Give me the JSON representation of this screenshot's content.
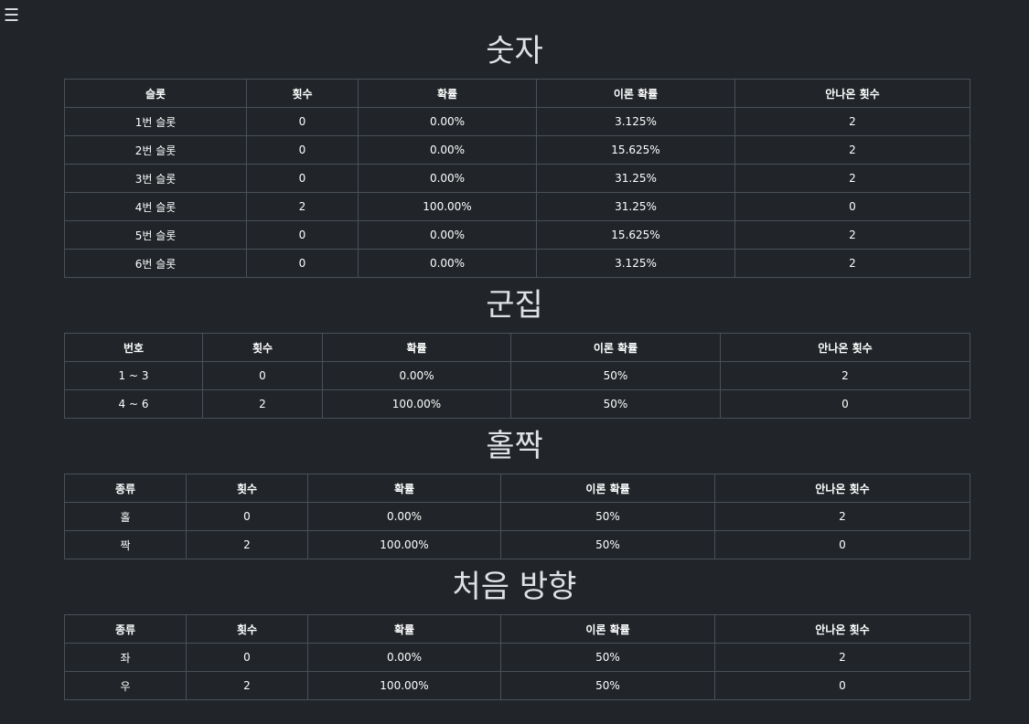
{
  "menu_icon": "☰",
  "sections": [
    {
      "title": "숫자",
      "headers": [
        "슬롯",
        "횟수",
        "확률",
        "이론 확률",
        "안나온 횟수"
      ],
      "rows": [
        [
          "1번 슬롯",
          "0",
          "0.00%",
          "3.125%",
          "2"
        ],
        [
          "2번 슬롯",
          "0",
          "0.00%",
          "15.625%",
          "2"
        ],
        [
          "3번 슬롯",
          "0",
          "0.00%",
          "31.25%",
          "2"
        ],
        [
          "4번 슬롯",
          "2",
          "100.00%",
          "31.25%",
          "0"
        ],
        [
          "5번 슬롯",
          "0",
          "0.00%",
          "15.625%",
          "2"
        ],
        [
          "6번 슬롯",
          "0",
          "0.00%",
          "3.125%",
          "2"
        ]
      ]
    },
    {
      "title": "군집",
      "headers": [
        "번호",
        "횟수",
        "확률",
        "이론 확률",
        "안나온 횟수"
      ],
      "rows": [
        [
          "1 ~ 3",
          "0",
          "0.00%",
          "50%",
          "2"
        ],
        [
          "4 ~ 6",
          "2",
          "100.00%",
          "50%",
          "0"
        ]
      ]
    },
    {
      "title": "홀짝",
      "headers": [
        "종류",
        "횟수",
        "확률",
        "이론 확률",
        "안나온 횟수"
      ],
      "rows": [
        [
          "홀",
          "0",
          "0.00%",
          "50%",
          "2"
        ],
        [
          "짝",
          "2",
          "100.00%",
          "50%",
          "0"
        ]
      ]
    },
    {
      "title": "처음 방향",
      "headers": [
        "종류",
        "횟수",
        "확률",
        "이론 확률",
        "안나온 횟수"
      ],
      "rows": [
        [
          "좌",
          "0",
          "0.00%",
          "50%",
          "2"
        ],
        [
          "우",
          "2",
          "100.00%",
          "50%",
          "0"
        ]
      ]
    }
  ]
}
